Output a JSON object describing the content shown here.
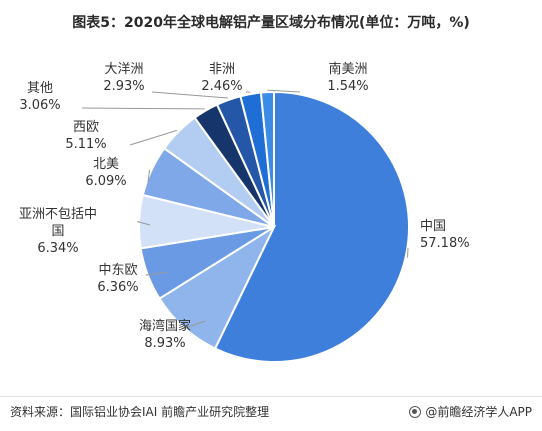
{
  "title": "图表5：2020年全球电解铝产量区域分布情况(单位：万吨，%)",
  "chart_data": {
    "type": "pie",
    "slices": [
      {
        "label": "中国",
        "value": 57.18,
        "value_text": "57.18%",
        "color": "#3d7fdb"
      },
      {
        "label": "海湾国家",
        "value": 8.93,
        "value_text": "8.93%",
        "color": "#90b5ec"
      },
      {
        "label": "中东欧",
        "value": 6.36,
        "value_text": "6.36%",
        "color": "#6b9ae4"
      },
      {
        "label": "亚洲不包括中国",
        "value": 6.34,
        "value_text": "6.34%",
        "color": "#d2e1f7"
      },
      {
        "label": "北美",
        "value": 6.09,
        "value_text": "6.09%",
        "color": "#7fa8e8"
      },
      {
        "label": "西欧",
        "value": 5.11,
        "value_text": "5.11%",
        "color": "#b3cdf2"
      },
      {
        "label": "其他",
        "value": 3.06,
        "value_text": "3.06%",
        "color": "#16366b"
      },
      {
        "label": "大洋洲",
        "value": 2.93,
        "value_text": "2.93%",
        "color": "#2457a8"
      },
      {
        "label": "非洲",
        "value": 2.46,
        "value_text": "2.46%",
        "color": "#1e6ed6"
      },
      {
        "label": "南美洲",
        "value": 1.54,
        "value_text": "1.54%",
        "color": "#3a8ce6"
      }
    ]
  },
  "footer": {
    "source": "资料来源：国际铝业协会IAI 前瞻产业研究院整理",
    "brand": "@前瞻经济学人APP",
    "brand_icon": "qianzhan-logo-icon"
  },
  "watermark": "前瞻产业研究院"
}
